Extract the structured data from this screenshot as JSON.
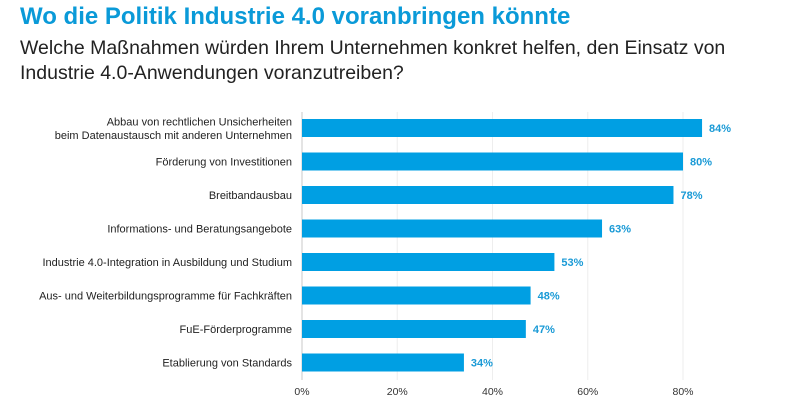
{
  "chart_data": {
    "type": "bar",
    "orientation": "horizontal",
    "title": "Wo die Politik Industrie 4.0 voranbringen könnte",
    "subtitle": "Welche Maßnahmen würden Ihrem Unternehmen konkret helfen, den Einsatz von Industrie 4.0-Anwendungen voranzutreiben?",
    "categories": [
      [
        "Abbau von rechtlichen Unsicherheiten",
        "beim Datenaustausch mit anderen Unternehmen"
      ],
      [
        "Förderung von Investitionen"
      ],
      [
        "Breitbandausbau"
      ],
      [
        "Informations- und Beratungsangebote"
      ],
      [
        "Industrie 4.0-Integration in Ausbildung und Studium"
      ],
      [
        "Aus- und Weiterbildungsprogramme für Fachkräften"
      ],
      [
        "FuE-Förderprogramme"
      ],
      [
        "Etablierung von Standards"
      ]
    ],
    "values": [
      84,
      80,
      78,
      63,
      53,
      48,
      47,
      34
    ],
    "data_labels": [
      "84%",
      "80%",
      "78%",
      "63%",
      "53%",
      "48%",
      "47%",
      "34%"
    ],
    "xlim": [
      0,
      88
    ],
    "xticks": [
      0,
      20,
      40,
      60,
      80
    ],
    "xtick_labels": [
      "0%",
      "20%",
      "40%",
      "60%",
      "80%"
    ],
    "grid": true,
    "bar_color": "#009fe3",
    "label_color": "#1a9ad6",
    "title_color": "#0a9ad8"
  }
}
